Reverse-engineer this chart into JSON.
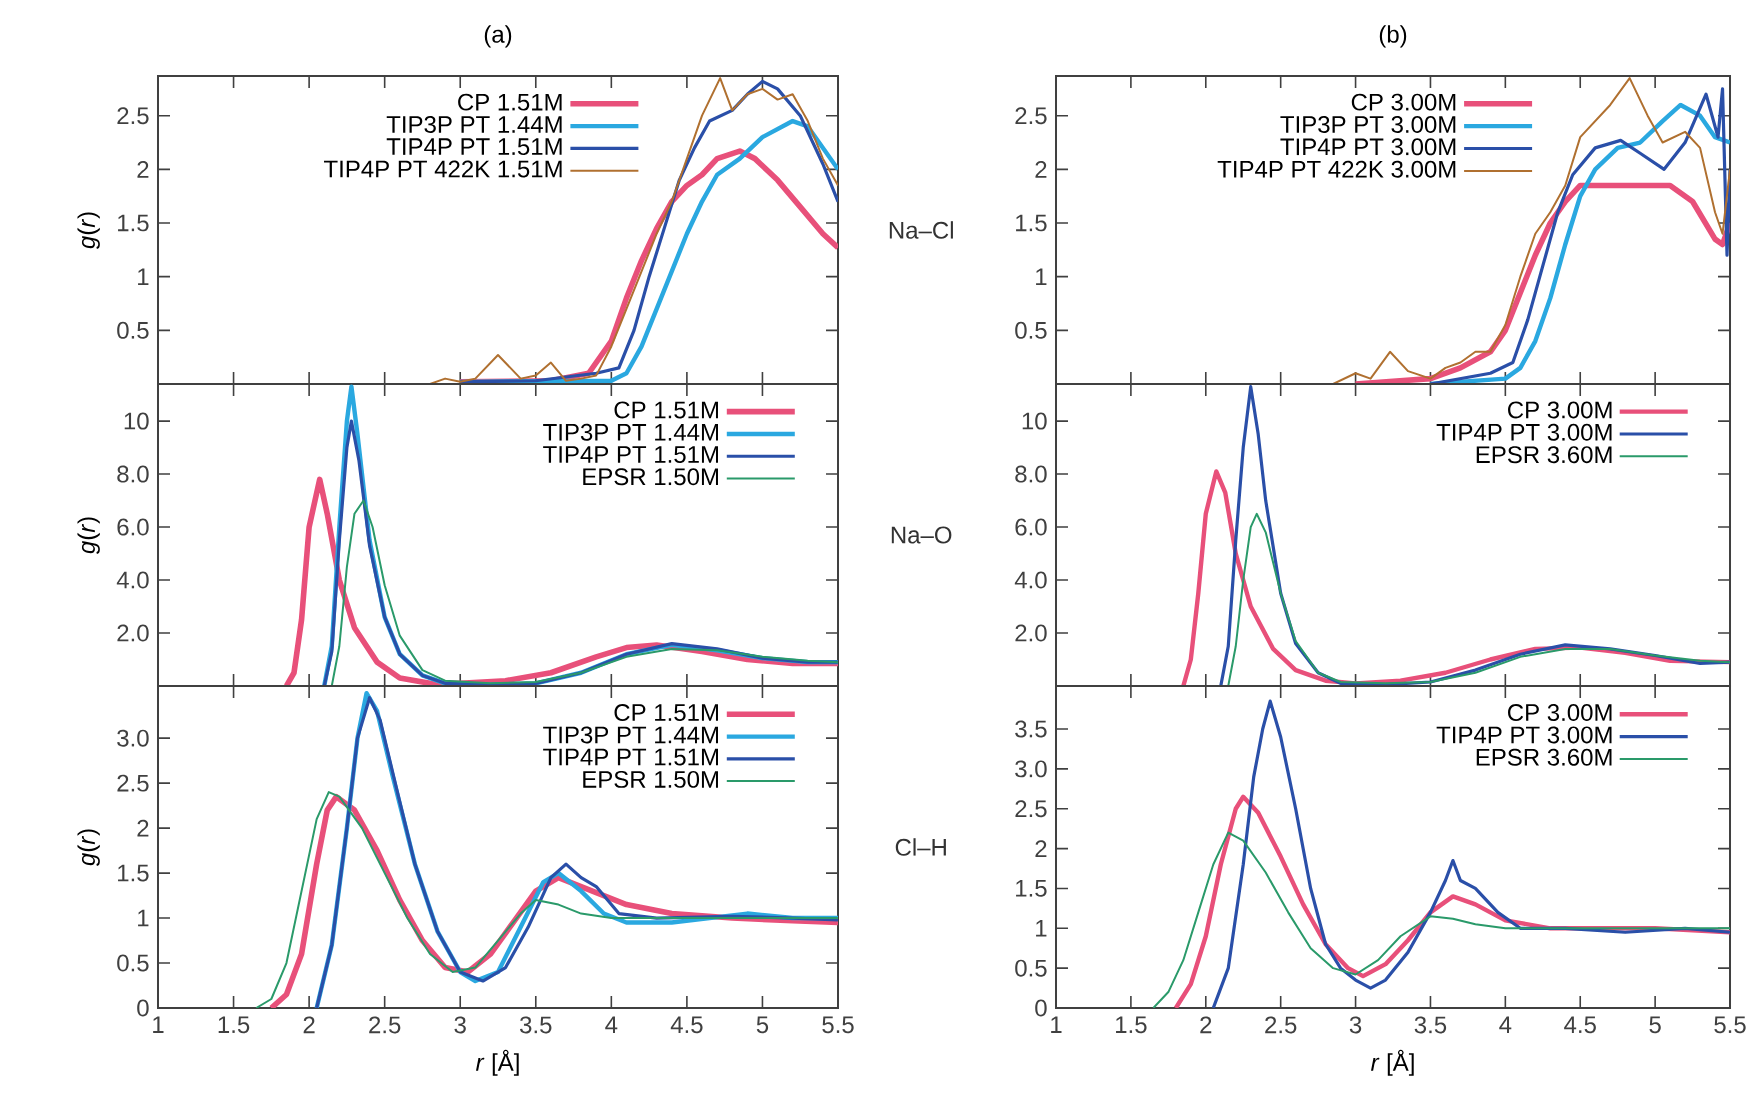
{
  "chart_data": [
    {
      "type": "line",
      "title": "(a)",
      "ylabel": "*g*(*r*)",
      "xlim": [
        1,
        5.5
      ],
      "ylim": [
        0,
        2.87
      ],
      "xticks": [
        1,
        1.5,
        2,
        2.5,
        3,
        3.5,
        4,
        4.5,
        5,
        5.5
      ],
      "yticks": [
        0.5,
        1,
        1.5,
        2,
        2.5
      ],
      "tick_labels": "y",
      "legend": "top right",
      "marker": "none",
      "series": [
        {
          "name": "CP 1.51M",
          "color": "#e8507a",
          "x": [
            3.0,
            3.6,
            3.85,
            4.0,
            4.1,
            4.2,
            4.3,
            4.4,
            4.5,
            4.6,
            4.7,
            4.85,
            4.95,
            5.1,
            5.25,
            5.4,
            5.5
          ],
          "values": [
            0.02,
            0.03,
            0.1,
            0.4,
            0.8,
            1.15,
            1.45,
            1.7,
            1.85,
            1.95,
            2.1,
            2.17,
            2.1,
            1.9,
            1.65,
            1.4,
            1.27
          ]
        },
        {
          "name": "TIP3P PT 1.44M",
          "color": "#2aa8e0",
          "x": [
            3.0,
            4.0,
            4.1,
            4.2,
            4.3,
            4.4,
            4.5,
            4.6,
            4.7,
            4.85,
            5.0,
            5.2,
            5.3,
            5.4,
            5.5
          ],
          "values": [
            0.02,
            0.03,
            0.1,
            0.35,
            0.7,
            1.05,
            1.4,
            1.7,
            1.95,
            2.1,
            2.3,
            2.45,
            2.4,
            2.2,
            2.0
          ]
        },
        {
          "name": "TIP4P PT 1.51M",
          "color": "#2a4fa8",
          "x": [
            3.0,
            3.5,
            3.9,
            4.05,
            4.15,
            4.25,
            4.35,
            4.45,
            4.55,
            4.65,
            4.8,
            4.9,
            5.0,
            5.1,
            5.25,
            5.4,
            5.5
          ],
          "values": [
            0.02,
            0.03,
            0.1,
            0.15,
            0.5,
            1.0,
            1.45,
            1.9,
            2.2,
            2.45,
            2.55,
            2.7,
            2.82,
            2.75,
            2.5,
            2.05,
            1.7
          ]
        },
        {
          "name": "TIP4P PT 422K 1.51M",
          "color": "#b07030",
          "x": [
            2.8,
            2.9,
            3.0,
            3.1,
            3.25,
            3.4,
            3.5,
            3.6,
            3.7,
            3.8,
            3.9,
            4.0,
            4.1,
            4.2,
            4.3,
            4.4,
            4.5,
            4.6,
            4.72,
            4.8,
            4.9,
            5.0,
            5.1,
            5.2,
            5.3,
            5.4,
            5.5
          ],
          "values": [
            0.0,
            0.05,
            0.02,
            0.05,
            0.27,
            0.05,
            0.08,
            0.2,
            0.03,
            0.05,
            0.08,
            0.35,
            0.7,
            1.05,
            1.4,
            1.7,
            2.1,
            2.5,
            2.85,
            2.55,
            2.7,
            2.75,
            2.65,
            2.7,
            2.45,
            2.1,
            1.85
          ]
        }
      ]
    },
    {
      "type": "line",
      "title": "(b)",
      "annotations": [
        "Na–Cl"
      ],
      "xlim": [
        1,
        5.5
      ],
      "ylim": [
        0,
        2.87
      ],
      "xticks": [
        1,
        1.5,
        2,
        2.5,
        3,
        3.5,
        4,
        4.5,
        5,
        5.5
      ],
      "yticks": [
        0.5,
        1,
        1.5,
        2,
        2.5
      ],
      "tick_labels": "y",
      "legend": "top right",
      "marker": "none",
      "series": [
        {
          "name": "CP 3.00M",
          "color": "#e8507a",
          "x": [
            3.0,
            3.5,
            3.7,
            3.9,
            4.0,
            4.1,
            4.2,
            4.3,
            4.4,
            4.5,
            4.8,
            5.1,
            5.25,
            5.4,
            5.45,
            5.5
          ],
          "values": [
            0.0,
            0.05,
            0.15,
            0.3,
            0.5,
            0.85,
            1.2,
            1.5,
            1.7,
            1.85,
            1.85,
            1.85,
            1.7,
            1.35,
            1.3,
            1.5
          ]
        },
        {
          "name": "TIP3P PT 3.00M",
          "color": "#2aa8e0",
          "x": [
            3.5,
            4.0,
            4.1,
            4.2,
            4.3,
            4.4,
            4.5,
            4.6,
            4.75,
            4.9,
            5.05,
            5.17,
            5.3,
            5.4,
            5.5
          ],
          "values": [
            0.0,
            0.05,
            0.15,
            0.4,
            0.8,
            1.3,
            1.75,
            2.0,
            2.2,
            2.25,
            2.45,
            2.6,
            2.5,
            2.3,
            2.25
          ]
        },
        {
          "name": "TIP4P PT 3.00M",
          "color": "#2a4fa8",
          "x": [
            3.5,
            3.9,
            4.05,
            4.15,
            4.25,
            4.35,
            4.45,
            4.6,
            4.77,
            4.9,
            5.06,
            5.2,
            5.34,
            5.42,
            5.45,
            5.48,
            5.5
          ],
          "values": [
            0.0,
            0.1,
            0.2,
            0.6,
            1.1,
            1.6,
            1.95,
            2.2,
            2.27,
            2.15,
            2.0,
            2.25,
            2.7,
            2.3,
            2.75,
            1.2,
            2.0
          ]
        },
        {
          "name": "TIP4P PT 422K 3.00M",
          "color": "#b07030",
          "x": [
            2.85,
            3.0,
            3.1,
            3.23,
            3.35,
            3.5,
            3.6,
            3.7,
            3.8,
            3.9,
            4.0,
            4.1,
            4.2,
            4.3,
            4.4,
            4.5,
            4.6,
            4.7,
            4.83,
            4.95,
            5.05,
            5.2,
            5.3,
            5.4,
            5.45,
            5.5
          ],
          "values": [
            0.0,
            0.1,
            0.05,
            0.3,
            0.12,
            0.05,
            0.15,
            0.2,
            0.3,
            0.3,
            0.55,
            1.0,
            1.4,
            1.6,
            1.85,
            2.3,
            2.45,
            2.6,
            2.85,
            2.5,
            2.25,
            2.35,
            2.2,
            1.6,
            1.4,
            2.0
          ]
        }
      ]
    },
    {
      "type": "line",
      "ylabel": "*g*(*r*)",
      "xlim": [
        1,
        5.5
      ],
      "ylim": [
        0,
        11.4
      ],
      "xticks": [
        1,
        1.5,
        2,
        2.5,
        3,
        3.5,
        4,
        4.5,
        5,
        5.5
      ],
      "yticks": [
        {
          "value": 2,
          "label": "2.0"
        },
        {
          "value": 4,
          "label": "4.0"
        },
        {
          "value": 6,
          "label": "6.0"
        },
        {
          "value": 8,
          "label": "8.0"
        },
        10
      ],
      "tick_labels": "y",
      "legend": "top right",
      "marker": "none",
      "series": [
        {
          "name": "CP 1.51M",
          "color": "#e8507a",
          "x": [
            1.85,
            1.9,
            1.95,
            2.0,
            2.07,
            2.12,
            2.2,
            2.3,
            2.45,
            2.6,
            2.8,
            3.0,
            3.3,
            3.6,
            3.9,
            4.1,
            4.3,
            4.6,
            4.9,
            5.2,
            5.5
          ],
          "values": [
            0,
            0.5,
            2.5,
            6.0,
            7.8,
            6.5,
            4.0,
            2.2,
            0.9,
            0.3,
            0.1,
            0.1,
            0.2,
            0.5,
            1.1,
            1.45,
            1.55,
            1.3,
            1.0,
            0.85,
            0.85
          ]
        },
        {
          "name": "TIP3P PT 1.44M",
          "color": "#2aa8e0",
          "x": [
            2.1,
            2.15,
            2.2,
            2.25,
            2.28,
            2.32,
            2.4,
            2.5,
            2.6,
            2.75,
            2.9,
            3.2,
            3.5,
            3.8,
            4.1,
            4.4,
            4.7,
            5.0,
            5.3,
            5.5
          ],
          "values": [
            0,
            1.5,
            6.0,
            10.0,
            11.3,
            9.5,
            5.5,
            2.6,
            1.2,
            0.4,
            0.1,
            0.05,
            0.1,
            0.5,
            1.2,
            1.55,
            1.35,
            1.05,
            0.9,
            0.9
          ]
        },
        {
          "name": "TIP4P PT 1.51M",
          "color": "#2a4fa8",
          "x": [
            2.1,
            2.15,
            2.2,
            2.25,
            2.28,
            2.33,
            2.4,
            2.5,
            2.6,
            2.75,
            2.9,
            3.2,
            3.5,
            3.8,
            4.1,
            4.4,
            4.7,
            5.0,
            5.3,
            5.5
          ],
          "values": [
            0,
            1.3,
            5.5,
            9.0,
            10.0,
            8.5,
            5.3,
            2.6,
            1.2,
            0.4,
            0.1,
            0.05,
            0.1,
            0.5,
            1.2,
            1.6,
            1.4,
            1.05,
            0.9,
            0.9
          ]
        },
        {
          "name": "EPSR 1.50M",
          "color": "#2a9a6a",
          "x": [
            2.15,
            2.2,
            2.25,
            2.3,
            2.36,
            2.42,
            2.5,
            2.6,
            2.75,
            2.9,
            3.2,
            3.5,
            3.8,
            4.1,
            4.4,
            4.7,
            5.0,
            5.3,
            5.5
          ],
          "values": [
            0,
            1.5,
            4.5,
            6.5,
            7.0,
            6.0,
            3.8,
            1.9,
            0.6,
            0.2,
            0.1,
            0.15,
            0.5,
            1.1,
            1.4,
            1.35,
            1.1,
            0.95,
            0.9
          ]
        }
      ]
    },
    {
      "type": "line",
      "annotations": [
        "Na–O"
      ],
      "xlim": [
        1,
        5.5
      ],
      "ylim": [
        0,
        11.4
      ],
      "xticks": [
        1,
        1.5,
        2,
        2.5,
        3,
        3.5,
        4,
        4.5,
        5,
        5.5
      ],
      "yticks": [
        {
          "value": 2,
          "label": "2.0"
        },
        {
          "value": 4,
          "label": "4.0"
        },
        {
          "value": 6,
          "label": "6.0"
        },
        {
          "value": 8,
          "label": "8.0"
        },
        10
      ],
      "tick_labels": "y",
      "legend": "top right",
      "marker": "none",
      "series": [
        {
          "name": "CP 3.00M",
          "color": "#e8507a",
          "x": [
            1.85,
            1.9,
            1.95,
            2.0,
            2.07,
            2.13,
            2.2,
            2.3,
            2.45,
            2.6,
            2.8,
            3.0,
            3.3,
            3.6,
            3.9,
            4.2,
            4.5,
            4.8,
            5.1,
            5.5
          ],
          "values": [
            0,
            1.0,
            3.5,
            6.5,
            8.1,
            7.3,
            5.0,
            3.0,
            1.4,
            0.6,
            0.2,
            0.1,
            0.2,
            0.5,
            1.0,
            1.4,
            1.45,
            1.25,
            0.95,
            0.9
          ]
        },
        {
          "name": "TIP4P PT 3.00M",
          "color": "#2a4fa8",
          "x": [
            2.1,
            2.15,
            2.2,
            2.25,
            2.3,
            2.35,
            2.4,
            2.5,
            2.6,
            2.75,
            2.9,
            3.2,
            3.5,
            3.8,
            4.1,
            4.4,
            4.7,
            5.0,
            5.3,
            5.5
          ],
          "values": [
            0,
            1.5,
            5.5,
            9.0,
            11.3,
            9.5,
            7.0,
            3.5,
            1.6,
            0.5,
            0.1,
            0.05,
            0.15,
            0.6,
            1.2,
            1.55,
            1.4,
            1.15,
            0.85,
            0.9
          ]
        },
        {
          "name": "EPSR 3.60M",
          "color": "#2a9a6a",
          "x": [
            2.15,
            2.2,
            2.25,
            2.3,
            2.34,
            2.4,
            2.5,
            2.6,
            2.75,
            2.9,
            3.2,
            3.5,
            3.8,
            4.1,
            4.4,
            4.7,
            5.0,
            5.3,
            5.5
          ],
          "values": [
            0,
            1.5,
            4.0,
            6.0,
            6.5,
            5.8,
            3.5,
            1.7,
            0.5,
            0.15,
            0.1,
            0.15,
            0.5,
            1.1,
            1.4,
            1.4,
            1.15,
            0.95,
            0.9
          ]
        }
      ]
    },
    {
      "type": "line",
      "ylabel": "*g*(*r*)",
      "xlabel": "*r* [Å]",
      "xlim": [
        1,
        5.5
      ],
      "ylim": [
        0,
        3.58
      ],
      "xticks": [
        1,
        1.5,
        2,
        2.5,
        3,
        3.5,
        4,
        4.5,
        5,
        5.5
      ],
      "yticks": [
        0,
        0.5,
        1,
        1.5,
        2,
        2.5,
        {
          "value": 3,
          "label": "3.0"
        }
      ],
      "legend": "top right",
      "marker": "none",
      "series": [
        {
          "name": "CP 1.51M",
          "color": "#e8507a",
          "x": [
            1.75,
            1.85,
            1.95,
            2.05,
            2.12,
            2.18,
            2.3,
            2.45,
            2.6,
            2.75,
            2.9,
            3.05,
            3.2,
            3.35,
            3.5,
            3.65,
            3.8,
            3.95,
            4.1,
            4.4,
            4.8,
            5.2,
            5.5
          ],
          "values": [
            0,
            0.15,
            0.6,
            1.6,
            2.2,
            2.35,
            2.2,
            1.75,
            1.2,
            0.75,
            0.45,
            0.4,
            0.6,
            0.95,
            1.3,
            1.45,
            1.35,
            1.25,
            1.15,
            1.05,
            1.0,
            0.97,
            0.95
          ]
        },
        {
          "name": "TIP3P PT 1.44M",
          "color": "#2aa8e0",
          "x": [
            2.05,
            2.15,
            2.25,
            2.32,
            2.38,
            2.45,
            2.55,
            2.7,
            2.85,
            3.0,
            3.1,
            3.25,
            3.4,
            3.55,
            3.65,
            3.8,
            3.95,
            4.1,
            4.4,
            4.9,
            5.2,
            5.5
          ],
          "values": [
            0,
            0.7,
            2.0,
            3.0,
            3.5,
            3.3,
            2.6,
            1.6,
            0.85,
            0.4,
            0.3,
            0.4,
            0.9,
            1.4,
            1.5,
            1.3,
            1.05,
            0.95,
            0.95,
            1.05,
            1.0,
            1.0
          ]
        },
        {
          "name": "TIP4P PT 1.51M",
          "color": "#2a4fa8",
          "x": [
            2.05,
            2.15,
            2.25,
            2.32,
            2.4,
            2.47,
            2.57,
            2.7,
            2.85,
            3.0,
            3.15,
            3.3,
            3.45,
            3.6,
            3.7,
            3.8,
            3.9,
            4.05,
            4.3,
            4.8,
            5.2,
            5.5
          ],
          "values": [
            0,
            0.7,
            2.0,
            3.0,
            3.45,
            3.2,
            2.5,
            1.6,
            0.85,
            0.4,
            0.3,
            0.45,
            0.9,
            1.45,
            1.6,
            1.45,
            1.35,
            1.05,
            1.0,
            1.02,
            1.0,
            0.98
          ]
        },
        {
          "name": "EPSR 1.50M",
          "color": "#2a9a6a",
          "x": [
            1.65,
            1.75,
            1.85,
            1.95,
            2.05,
            2.13,
            2.2,
            2.35,
            2.5,
            2.65,
            2.8,
            2.95,
            3.1,
            3.25,
            3.4,
            3.5,
            3.65,
            3.8,
            4.0,
            4.5,
            5.5
          ],
          "values": [
            0,
            0.1,
            0.5,
            1.3,
            2.1,
            2.4,
            2.35,
            2.0,
            1.5,
            1.0,
            0.6,
            0.4,
            0.45,
            0.75,
            1.05,
            1.2,
            1.15,
            1.05,
            1.0,
            1.0,
            1.0
          ]
        }
      ]
    },
    {
      "type": "line",
      "xlabel": "*r* [Å]",
      "annotations": [
        "Cl–H"
      ],
      "xlim": [
        1,
        5.5
      ],
      "ylim": [
        0,
        4.04
      ],
      "xticks": [
        1,
        1.5,
        2,
        2.5,
        3,
        3.5,
        4,
        4.5,
        5,
        5.5
      ],
      "yticks": [
        0,
        0.5,
        1,
        1.5,
        2,
        2.5,
        {
          "value": 3,
          "label": "3.0"
        },
        3.5
      ],
      "legend": "top right",
      "marker": "none",
      "series": [
        {
          "name": "CP 3.00M",
          "color": "#e8507a",
          "x": [
            1.8,
            1.9,
            2.0,
            2.1,
            2.2,
            2.25,
            2.35,
            2.5,
            2.65,
            2.8,
            2.95,
            3.05,
            3.2,
            3.35,
            3.5,
            3.65,
            3.8,
            4.0,
            4.3,
            5.0,
            5.5
          ],
          "values": [
            0,
            0.3,
            0.9,
            1.8,
            2.5,
            2.65,
            2.45,
            1.9,
            1.3,
            0.8,
            0.5,
            0.4,
            0.55,
            0.85,
            1.2,
            1.4,
            1.3,
            1.1,
            1.0,
            1.0,
            0.95
          ]
        },
        {
          "name": "TIP4P PT 3.00M",
          "color": "#2a4fa8",
          "x": [
            2.05,
            2.15,
            2.25,
            2.32,
            2.38,
            2.43,
            2.5,
            2.6,
            2.7,
            2.8,
            2.9,
            3.0,
            3.1,
            3.2,
            3.35,
            3.5,
            3.6,
            3.65,
            3.7,
            3.8,
            3.95,
            4.1,
            4.4,
            4.8,
            5.2,
            5.5
          ],
          "values": [
            0,
            0.5,
            1.8,
            2.9,
            3.5,
            3.85,
            3.4,
            2.5,
            1.5,
            0.8,
            0.5,
            0.35,
            0.25,
            0.35,
            0.7,
            1.2,
            1.6,
            1.85,
            1.6,
            1.5,
            1.2,
            1.0,
            1.0,
            0.95,
            1.0,
            0.95
          ]
        },
        {
          "name": "EPSR 3.60M",
          "color": "#2a9a6a",
          "x": [
            1.65,
            1.75,
            1.85,
            1.95,
            2.05,
            2.15,
            2.25,
            2.4,
            2.55,
            2.7,
            2.85,
            3.0,
            3.15,
            3.3,
            3.5,
            3.65,
            3.8,
            4.0,
            5.5
          ],
          "values": [
            0,
            0.2,
            0.6,
            1.2,
            1.8,
            2.2,
            2.1,
            1.7,
            1.2,
            0.75,
            0.5,
            0.42,
            0.6,
            0.9,
            1.15,
            1.12,
            1.05,
            1.0,
            1.0
          ]
        }
      ]
    }
  ]
}
